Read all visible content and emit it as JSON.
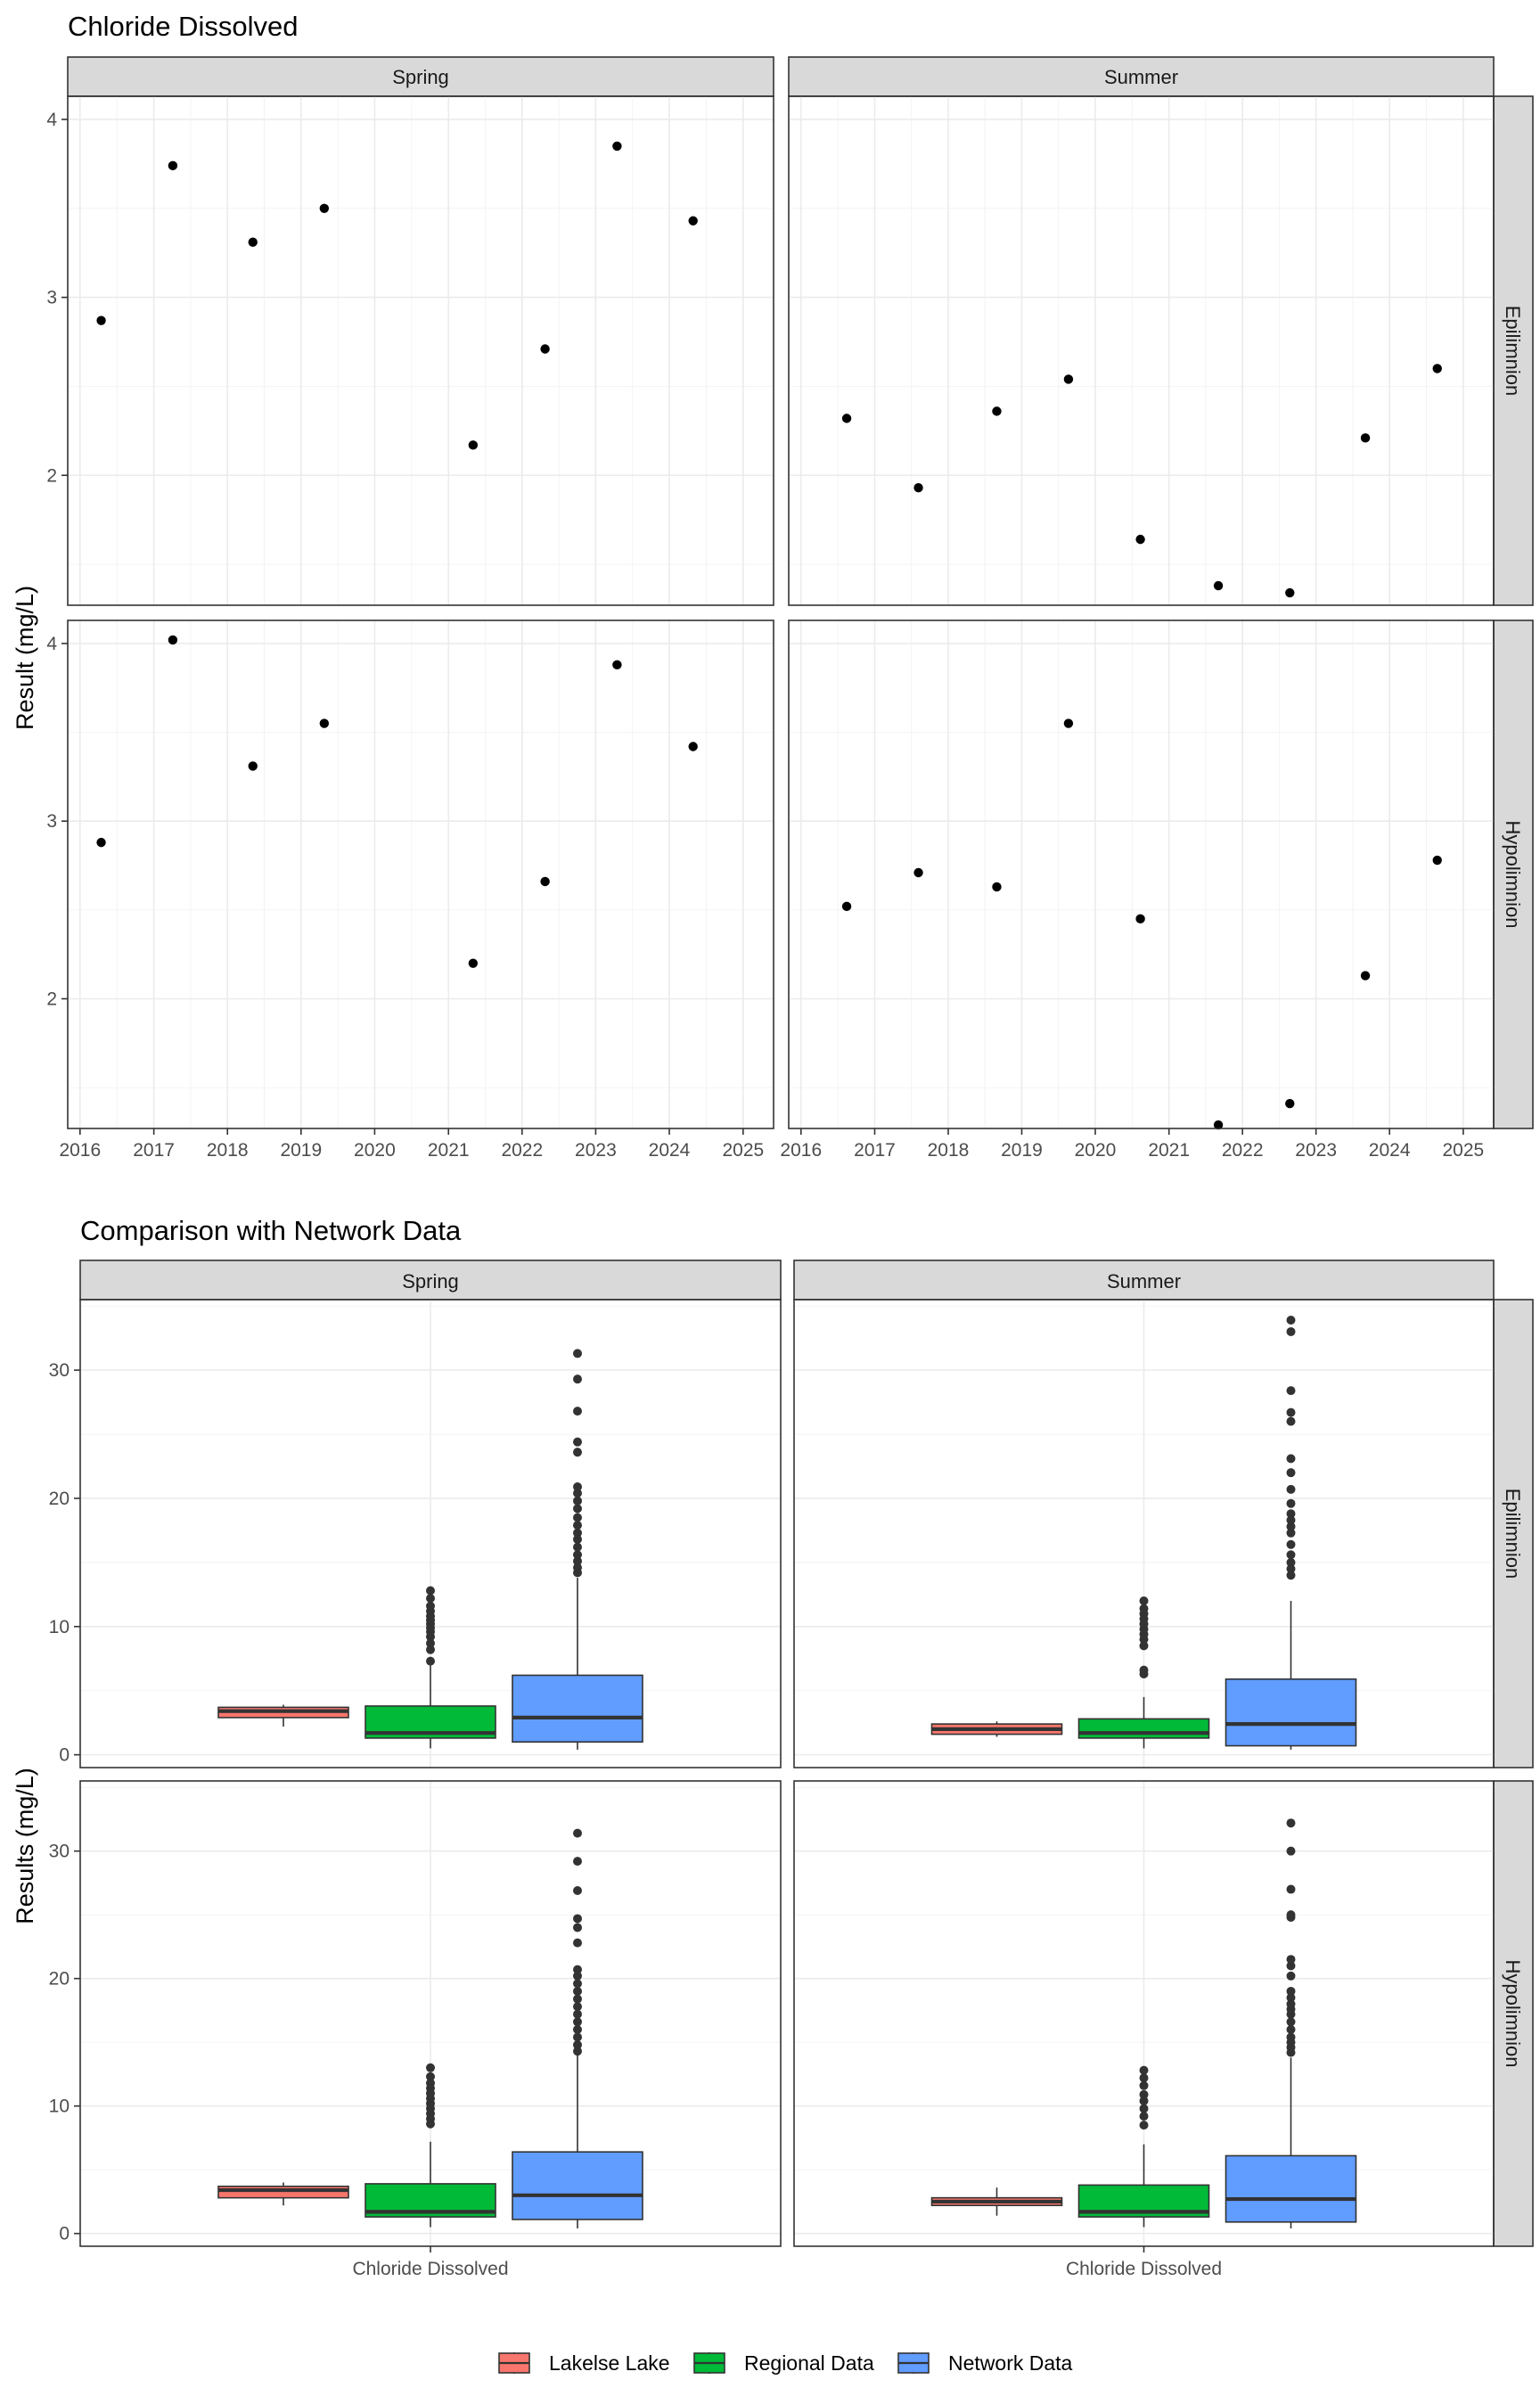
{
  "chart_data": [
    {
      "type": "scatter",
      "title": "Chloride Dissolved",
      "ylabel": "Result (mg/L)",
      "xlabel": "",
      "facet_columns": [
        "Spring",
        "Summer"
      ],
      "facet_rows": [
        "Epilimnion",
        "Hypolimnion"
      ],
      "x_ticks": [
        "2016",
        "2017",
        "2018",
        "2019",
        "2020",
        "2021",
        "2022",
        "2023",
        "2024",
        "2025"
      ],
      "xlim": [
        "2015-11-01",
        "2025-06-01"
      ],
      "y_ticks": [
        2,
        3,
        4
      ],
      "ylim": [
        1.27,
        4.13
      ],
      "grid": true,
      "point_color": "#000000",
      "panels": [
        {
          "column": "Spring",
          "row": "Epilimnion",
          "points": [
            {
              "x": "2016-04-15",
              "y": 2.87
            },
            {
              "x": "2017-04-05",
              "y": 3.74
            },
            {
              "x": "2018-05-07",
              "y": 3.31
            },
            {
              "x": "2019-04-26",
              "y": 3.5
            },
            {
              "x": "2021-05-03",
              "y": 2.17
            },
            {
              "x": "2022-04-25",
              "y": 2.71
            },
            {
              "x": "2023-04-17",
              "y": 3.85
            },
            {
              "x": "2024-04-28",
              "y": 3.43
            }
          ]
        },
        {
          "column": "Summer",
          "row": "Epilimnion",
          "points": [
            {
              "x": "2016-08-15",
              "y": 2.32
            },
            {
              "x": "2017-08-06",
              "y": 1.93
            },
            {
              "x": "2018-08-30",
              "y": 2.36
            },
            {
              "x": "2019-08-21",
              "y": 2.54
            },
            {
              "x": "2020-08-12",
              "y": 1.64
            },
            {
              "x": "2021-09-03",
              "y": 1.38
            },
            {
              "x": "2022-08-24",
              "y": 1.34
            },
            {
              "x": "2023-09-03",
              "y": 2.21
            },
            {
              "x": "2024-08-25",
              "y": 2.6
            }
          ]
        },
        {
          "column": "Spring",
          "row": "Hypolimnion",
          "points": [
            {
              "x": "2016-04-15",
              "y": 2.88
            },
            {
              "x": "2017-04-05",
              "y": 4.02
            },
            {
              "x": "2018-05-07",
              "y": 3.31
            },
            {
              "x": "2019-04-26",
              "y": 3.55
            },
            {
              "x": "2021-05-03",
              "y": 2.2
            },
            {
              "x": "2022-04-25",
              "y": 2.66
            },
            {
              "x": "2023-04-17",
              "y": 3.88
            },
            {
              "x": "2024-04-28",
              "y": 3.42
            }
          ]
        },
        {
          "column": "Summer",
          "row": "Hypolimnion",
          "points": [
            {
              "x": "2016-08-15",
              "y": 2.52
            },
            {
              "x": "2017-08-06",
              "y": 2.71
            },
            {
              "x": "2018-08-30",
              "y": 2.63
            },
            {
              "x": "2019-08-21",
              "y": 3.55
            },
            {
              "x": "2020-08-12",
              "y": 2.45
            },
            {
              "x": "2021-09-03",
              "y": 1.29
            },
            {
              "x": "2022-08-24",
              "y": 1.41
            },
            {
              "x": "2023-09-03",
              "y": 2.13
            },
            {
              "x": "2024-08-25",
              "y": 2.78
            }
          ]
        }
      ]
    },
    {
      "type": "box",
      "title": "Comparison with Network Data",
      "ylabel": "Results (mg/L)",
      "xlabel": "",
      "facet_columns": [
        "Spring",
        "Summer"
      ],
      "facet_rows": [
        "Epilimnion",
        "Hypolimnion"
      ],
      "categories": [
        "Chloride Dissolved"
      ],
      "y_ticks": [
        0,
        10,
        20,
        30
      ],
      "ylim": [
        -1.0,
        35.5
      ],
      "grid": true,
      "legend": {
        "position": "bottom"
      },
      "series": [
        {
          "name": "Lakelse Lake",
          "color": "#F8766D"
        },
        {
          "name": "Regional Data",
          "color": "#00BA38"
        },
        {
          "name": "Network Data",
          "color": "#619CFF"
        }
      ],
      "panels": [
        {
          "column": "Spring",
          "row": "Epilimnion",
          "boxes": [
            {
              "series": "Lakelse Lake",
              "lower_whisker": 2.2,
              "q1": 2.9,
              "median": 3.4,
              "q3": 3.7,
              "upper_whisker": 3.9,
              "outliers": []
            },
            {
              "series": "Regional Data",
              "lower_whisker": 0.5,
              "q1": 1.3,
              "median": 1.7,
              "q3": 3.8,
              "upper_whisker": 7.0,
              "outliers": [
                7.3,
                8.2,
                8.7,
                9.2,
                9.6,
                9.9,
                10.2,
                10.5,
                10.8,
                11.2,
                11.6,
                12.2,
                12.8
              ]
            },
            {
              "series": "Network Data",
              "lower_whisker": 0.4,
              "q1": 1.0,
              "median": 2.9,
              "q3": 6.2,
              "upper_whisker": 13.8,
              "outliers": [
                14.2,
                14.6,
                15.1,
                15.6,
                16.2,
                16.8,
                17.3,
                17.9,
                18.5,
                19.2,
                19.8,
                20.4,
                20.9,
                23.6,
                24.4,
                26.8,
                29.3,
                31.3
              ]
            }
          ]
        },
        {
          "column": "Summer",
          "row": "Epilimnion",
          "boxes": [
            {
              "series": "Lakelse Lake",
              "lower_whisker": 1.4,
              "q1": 1.6,
              "median": 2.0,
              "q3": 2.4,
              "upper_whisker": 2.6,
              "outliers": []
            },
            {
              "series": "Regional Data",
              "lower_whisker": 0.5,
              "q1": 1.3,
              "median": 1.7,
              "q3": 2.8,
              "upper_whisker": 4.5,
              "outliers": [
                6.3,
                6.6,
                8.5,
                9.0,
                9.4,
                9.8,
                10.2,
                10.6,
                11.0,
                11.4,
                12.0
              ]
            },
            {
              "series": "Network Data",
              "lower_whisker": 0.4,
              "q1": 0.7,
              "median": 2.4,
              "q3": 5.9,
              "upper_whisker": 12.0,
              "outliers": [
                14.0,
                14.5,
                15.0,
                15.6,
                16.4,
                17.3,
                17.8,
                18.3,
                18.8,
                19.6,
                20.7,
                22.0,
                23.1,
                26.0,
                26.7,
                28.4,
                33.0,
                33.9
              ]
            }
          ]
        },
        {
          "column": "Spring",
          "row": "Hypolimnion",
          "boxes": [
            {
              "series": "Lakelse Lake",
              "lower_whisker": 2.2,
              "q1": 2.8,
              "median": 3.4,
              "q3": 3.7,
              "upper_whisker": 4.0,
              "outliers": []
            },
            {
              "series": "Regional Data",
              "lower_whisker": 0.5,
              "q1": 1.3,
              "median": 1.7,
              "q3": 3.9,
              "upper_whisker": 7.2,
              "outliers": [
                8.6,
                9.0,
                9.4,
                9.8,
                10.2,
                10.6,
                11.0,
                11.4,
                11.8,
                12.3,
                13.0
              ]
            },
            {
              "series": "Network Data",
              "lower_whisker": 0.4,
              "q1": 1.1,
              "median": 3.0,
              "q3": 6.4,
              "upper_whisker": 14.0,
              "outliers": [
                14.3,
                14.8,
                15.4,
                16.0,
                16.6,
                17.2,
                17.8,
                18.4,
                19.0,
                19.6,
                20.2,
                20.7,
                22.8,
                24.0,
                24.7,
                26.9,
                29.2,
                31.4
              ]
            }
          ]
        },
        {
          "column": "Summer",
          "row": "Hypolimnion",
          "boxes": [
            {
              "series": "Lakelse Lake",
              "lower_whisker": 1.4,
              "q1": 2.2,
              "median": 2.5,
              "q3": 2.8,
              "upper_whisker": 3.6,
              "outliers": []
            },
            {
              "series": "Regional Data",
              "lower_whisker": 0.5,
              "q1": 1.3,
              "median": 1.7,
              "q3": 3.8,
              "upper_whisker": 7.0,
              "outliers": [
                8.5,
                9.2,
                9.8,
                10.4,
                10.9,
                11.6,
                12.2,
                12.8
              ]
            },
            {
              "series": "Network Data",
              "lower_whisker": 0.4,
              "q1": 0.9,
              "median": 2.7,
              "q3": 6.1,
              "upper_whisker": 13.8,
              "outliers": [
                14.2,
                14.6,
                15.0,
                15.4,
                16.0,
                16.6,
                17.2,
                17.6,
                18.0,
                18.5,
                19.0,
                20.2,
                21.0,
                21.5,
                24.8,
                25.0,
                27.0,
                30.0,
                32.2
              ]
            }
          ]
        }
      ]
    }
  ]
}
